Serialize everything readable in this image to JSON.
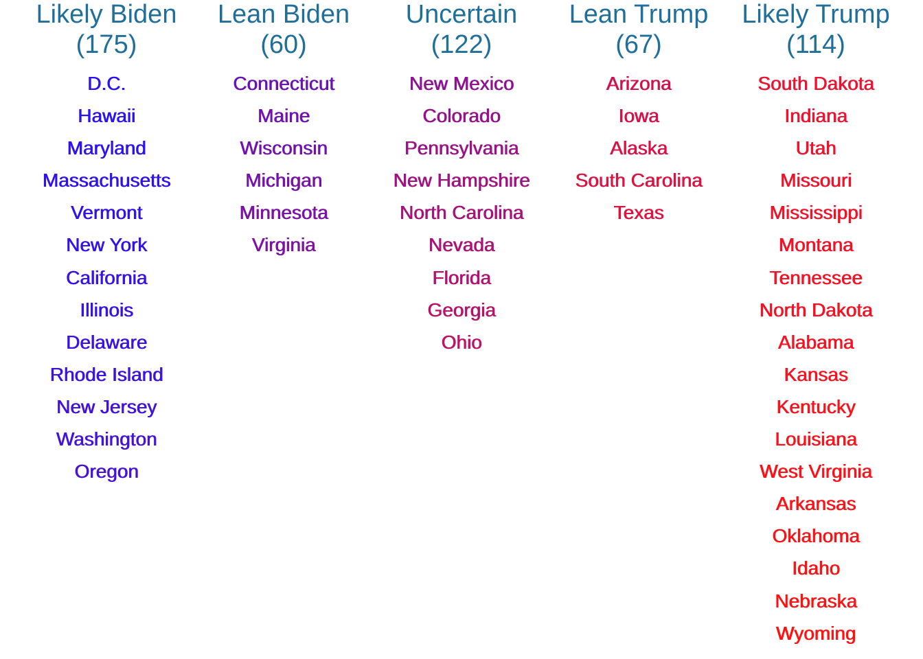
{
  "chart_data": {
    "type": "table",
    "columns": [
      {
        "title": "Likely Biden",
        "count": "(175)",
        "states": [
          {
            "name": "D.C.",
            "color": "#2a12f2"
          },
          {
            "name": "Hawaii",
            "color": "#2a12f2"
          },
          {
            "name": "Maryland",
            "color": "#2c12f0"
          },
          {
            "name": "Massachusetts",
            "color": "#2e12ee"
          },
          {
            "name": "Vermont",
            "color": "#3012ec"
          },
          {
            "name": "New York",
            "color": "#3212ea"
          },
          {
            "name": "California",
            "color": "#3412e8"
          },
          {
            "name": "Illinois",
            "color": "#3612e6"
          },
          {
            "name": "Delaware",
            "color": "#3812e4"
          },
          {
            "name": "Rhode Island",
            "color": "#3c12e0"
          },
          {
            "name": "New Jersey",
            "color": "#4012dc"
          },
          {
            "name": "Washington",
            "color": "#4412d8"
          },
          {
            "name": "Oregon",
            "color": "#4812d4"
          }
        ]
      },
      {
        "title": "Lean Biden",
        "count": "(60)",
        "states": [
          {
            "name": "Connecticut",
            "color": "#6a12b6"
          },
          {
            "name": "Maine",
            "color": "#6e12b2"
          },
          {
            "name": "Wisconsin",
            "color": "#7212ae"
          },
          {
            "name": "Michigan",
            "color": "#7612aa"
          },
          {
            "name": "Minnesota",
            "color": "#7a12a6"
          },
          {
            "name": "Virginia",
            "color": "#7e12a2"
          }
        ]
      },
      {
        "title": "Uncertain",
        "count": "(122)",
        "states": [
          {
            "name": "New Mexico",
            "color": "#8e1292"
          },
          {
            "name": "Colorado",
            "color": "#94128c"
          },
          {
            "name": "Pennsylvania",
            "color": "#9a1286"
          },
          {
            "name": "New Hampshire",
            "color": "#a01280"
          },
          {
            "name": "North Carolina",
            "color": "#a6127a"
          },
          {
            "name": "Nevada",
            "color": "#ac1274"
          },
          {
            "name": "Florida",
            "color": "#b2126e"
          },
          {
            "name": "Georgia",
            "color": "#b81268"
          },
          {
            "name": "Ohio",
            "color": "#be1262"
          }
        ]
      },
      {
        "title": "Lean Trump",
        "count": "(67)",
        "states": [
          {
            "name": "Arizona",
            "color": "#d0124c"
          },
          {
            "name": "Iowa",
            "color": "#d41248"
          },
          {
            "name": "Alaska",
            "color": "#d81244"
          },
          {
            "name": "South Carolina",
            "color": "#dc1240"
          },
          {
            "name": "Texas",
            "color": "#e0123c"
          }
        ]
      },
      {
        "title": "Likely Trump",
        "count": "(114)",
        "states": [
          {
            "name": "South Dakota",
            "color": "#ec1230"
          },
          {
            "name": "Indiana",
            "color": "#ee122e"
          },
          {
            "name": "Utah",
            "color": "#f0122c"
          },
          {
            "name": "Missouri",
            "color": "#f0122a"
          },
          {
            "name": "Mississippi",
            "color": "#f21228"
          },
          {
            "name": "Montana",
            "color": "#f21226"
          },
          {
            "name": "Tennessee",
            "color": "#f41224"
          },
          {
            "name": "North Dakota",
            "color": "#f41222"
          },
          {
            "name": "Alabama",
            "color": "#f61220"
          },
          {
            "name": "Kansas",
            "color": "#f6121e"
          },
          {
            "name": "Kentucky",
            "color": "#f8121c"
          },
          {
            "name": "Louisiana",
            "color": "#f8121a"
          },
          {
            "name": "West Virginia",
            "color": "#fa1218"
          },
          {
            "name": "Arkansas",
            "color": "#fa1216"
          },
          {
            "name": "Oklahoma",
            "color": "#fc1214"
          },
          {
            "name": "Idaho",
            "color": "#fc1212"
          },
          {
            "name": "Nebraska",
            "color": "#fd1212"
          },
          {
            "name": "Wyoming",
            "color": "#fe1212"
          }
        ]
      }
    ]
  }
}
